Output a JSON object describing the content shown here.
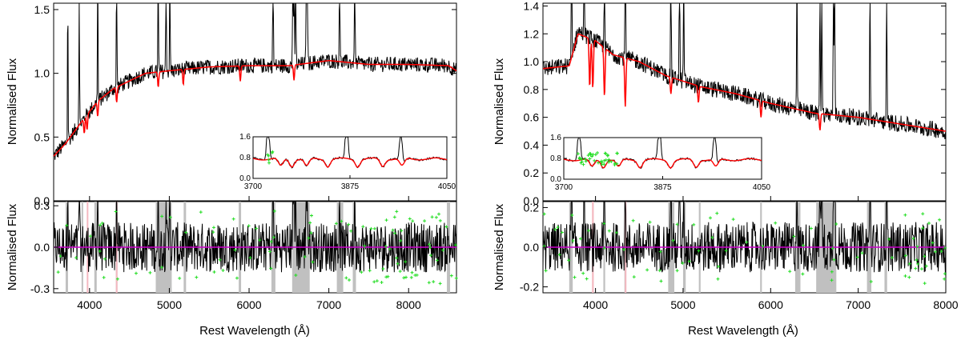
{
  "chart_data": [
    {
      "type": "line",
      "panel": "left",
      "main": {
        "ylabel": "Normalised Flux",
        "xlim": [
          3550,
          8600
        ],
        "ylim": [
          0,
          1.55
        ],
        "yticks": [
          "0.0",
          "0.5",
          "1.0",
          "1.5"
        ],
        "series": [
          {
            "role": "observed",
            "color": "#000000",
            "continuum": [
              [
                3550,
                0.35
              ],
              [
                3700,
                0.45
              ],
              [
                3900,
                0.62
              ],
              [
                4100,
                0.78
              ],
              [
                4300,
                0.88
              ],
              [
                4500,
                0.94
              ],
              [
                4700,
                1.0
              ],
              [
                5000,
                1.02
              ],
              [
                5500,
                1.05
              ],
              [
                6000,
                1.06
              ],
              [
                6500,
                1.06
              ],
              [
                7000,
                1.1
              ],
              [
                7500,
                1.07
              ],
              [
                8000,
                1.07
              ],
              [
                8500,
                1.06
              ],
              [
                8600,
                1.02
              ]
            ]
          },
          {
            "role": "model",
            "color": "#ff0000",
            "continuum": [
              [
                3550,
                0.35
              ],
              [
                3700,
                0.45
              ],
              [
                3900,
                0.62
              ],
              [
                4100,
                0.78
              ],
              [
                4300,
                0.88
              ],
              [
                4500,
                0.94
              ],
              [
                4700,
                1.0
              ],
              [
                5000,
                1.02
              ],
              [
                5500,
                1.05
              ],
              [
                6000,
                1.06
              ],
              [
                6500,
                1.06
              ],
              [
                7000,
                1.1
              ],
              [
                7500,
                1.07
              ],
              [
                8000,
                1.07
              ],
              [
                8500,
                1.06
              ],
              [
                8600,
                1.02
              ]
            ]
          }
        ],
        "inset": {
          "xlim": [
            3700,
            4050
          ],
          "ylim": [
            0,
            1.6
          ],
          "xticks": [
            "3700",
            "3875",
            "4050"
          ],
          "yticks": [
            "0.0",
            "0.8",
            "1.6"
          ]
        }
      },
      "residual": {
        "xlabel": "Rest Wavelength (Å)",
        "ylabel": "Normalised Flux",
        "xlim": [
          3550,
          8600
        ],
        "ylim": [
          -0.33,
          0.33
        ],
        "yticks": [
          "-0.3",
          "0.0",
          "0.3"
        ],
        "xticks": [
          "4000",
          "5000",
          "6000",
          "7000",
          "8000"
        ],
        "masked_grey": [
          [
            3700,
            3730
          ],
          [
            3900,
            3915
          ],
          [
            4060,
            4090
          ],
          [
            4330,
            4350
          ],
          [
            4830,
            5030
          ],
          [
            5180,
            5210
          ],
          [
            5870,
            5900
          ],
          [
            6280,
            6330
          ],
          [
            6540,
            6760
          ],
          [
            7100,
            7180
          ],
          [
            7300,
            7340
          ],
          [
            8480,
            8520
          ]
        ],
        "masked_pink": [
          [
            3965,
            3980
          ],
          [
            4330,
            4345
          ]
        ]
      }
    },
    {
      "type": "line",
      "panel": "right",
      "main": {
        "ylabel": "Normalised Flux",
        "xlim": [
          3400,
          8000
        ],
        "ylim": [
          0,
          1.42
        ],
        "yticks": [
          "0.0",
          "0.2",
          "0.4",
          "0.6",
          "0.8",
          "1.0",
          "1.2",
          "1.4"
        ],
        "series": [
          {
            "role": "observed",
            "color": "#000000",
            "continuum": [
              [
                3400,
                0.95
              ],
              [
                3700,
                0.97
              ],
              [
                3800,
                1.22
              ],
              [
                4000,
                1.15
              ],
              [
                4200,
                1.05
              ],
              [
                4500,
                1.0
              ],
              [
                4800,
                0.9
              ],
              [
                5200,
                0.82
              ],
              [
                5600,
                0.77
              ],
              [
                6000,
                0.7
              ],
              [
                6500,
                0.63
              ],
              [
                7000,
                0.6
              ],
              [
                7500,
                0.55
              ],
              [
                8000,
                0.5
              ]
            ]
          },
          {
            "role": "model",
            "color": "#ff0000",
            "continuum": [
              [
                3400,
                0.95
              ],
              [
                3700,
                0.97
              ],
              [
                3800,
                1.2
              ],
              [
                4000,
                1.15
              ],
              [
                4200,
                1.05
              ],
              [
                4500,
                1.0
              ],
              [
                4800,
                0.9
              ],
              [
                5200,
                0.82
              ],
              [
                5600,
                0.77
              ],
              [
                6000,
                0.7
              ],
              [
                6500,
                0.63
              ],
              [
                7000,
                0.6
              ],
              [
                7500,
                0.55
              ],
              [
                8000,
                0.5
              ]
            ]
          }
        ],
        "inset": {
          "xlim": [
            3700,
            4050
          ],
          "ylim": [
            0,
            1.6
          ],
          "xticks": [
            "3700",
            "3875",
            "4050"
          ],
          "yticks": [
            "0.0",
            "0.8",
            "1.6"
          ]
        }
      },
      "residual": {
        "xlabel": "Rest Wavelength (Å)",
        "ylabel": "Normalised Flux",
        "xlim": [
          3400,
          8000
        ],
        "ylim": [
          -0.23,
          0.23
        ],
        "yticks": [
          "-0.2",
          "0.0",
          "0.2"
        ],
        "xticks": [
          "4000",
          "5000",
          "6000",
          "7000",
          "8000"
        ],
        "masked_grey": [
          [
            3700,
            3740
          ],
          [
            4090,
            4110
          ],
          [
            4330,
            4345
          ],
          [
            4830,
            4900
          ],
          [
            5000,
            5030
          ],
          [
            5180,
            5200
          ],
          [
            5880,
            5900
          ],
          [
            6280,
            6340
          ],
          [
            6520,
            6750
          ],
          [
            7100,
            7150
          ],
          [
            7300,
            7330
          ]
        ],
        "masked_pink": [
          [
            3960,
            3980
          ],
          [
            4335,
            4350
          ]
        ]
      }
    }
  ]
}
